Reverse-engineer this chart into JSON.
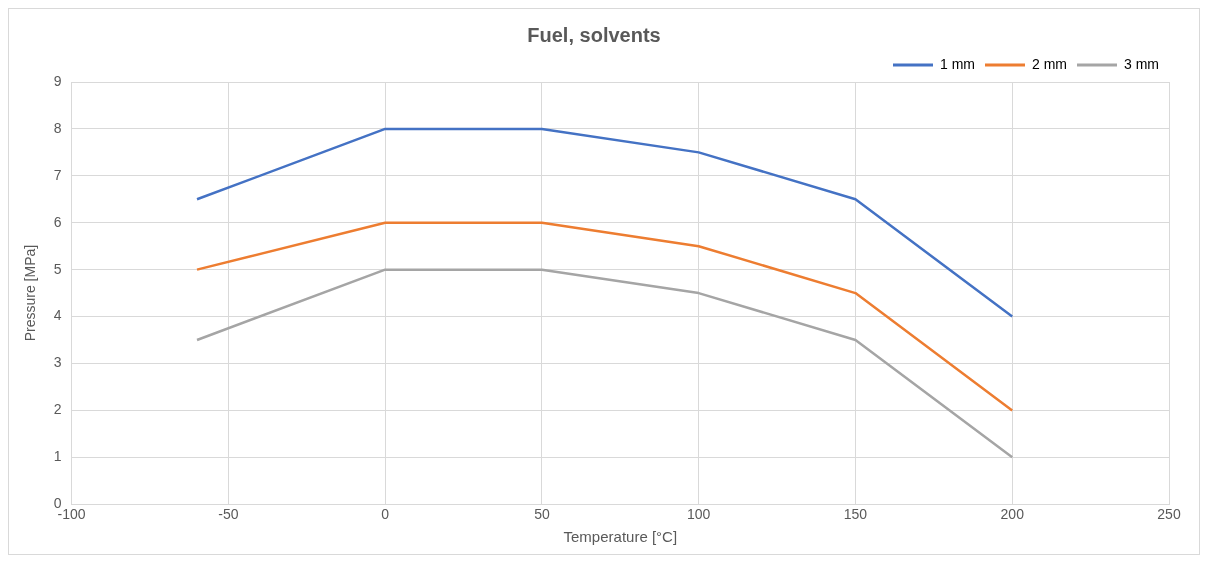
{
  "chart_data": {
    "type": "line",
    "title": "Fuel, solvents",
    "xlabel": "Temperature [°C]",
    "ylabel": "Pressure [MPa]",
    "x": [
      -60,
      0,
      50,
      100,
      150,
      200
    ],
    "series": [
      {
        "name": "1 mm",
        "color": "#4472c4",
        "values": [
          6.5,
          8,
          8,
          7.5,
          6.5,
          4
        ]
      },
      {
        "name": "2 mm",
        "color": "#ed7d31",
        "values": [
          5,
          6,
          6,
          5.5,
          4.5,
          2
        ]
      },
      {
        "name": "3 mm",
        "color": "#a5a5a5",
        "values": [
          3.5,
          5,
          5,
          4.5,
          3.5,
          1
        ]
      }
    ],
    "xlim": [
      -100,
      250
    ],
    "xticks": [
      -100,
      -50,
      0,
      50,
      100,
      150,
      200,
      250
    ],
    "ylim": [
      0,
      9
    ],
    "yticks": [
      0,
      1,
      2,
      3,
      4,
      5,
      6,
      7,
      8,
      9
    ],
    "grid": true,
    "legend": "top right",
    "marker": "none",
    "line_style": "solid"
  }
}
